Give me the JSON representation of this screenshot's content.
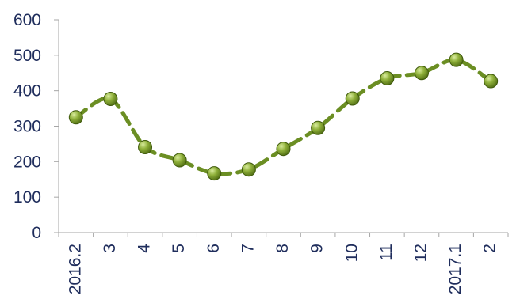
{
  "chart_data": {
    "type": "line",
    "title": "",
    "xlabel": "",
    "ylabel": "",
    "categories": [
      "2016.2",
      "3",
      "4",
      "5",
      "6",
      "7",
      "8",
      "9",
      "10",
      "11",
      "12",
      "2017.1",
      "2"
    ],
    "series": [
      {
        "values": [
          325,
          377,
          241,
          204,
          167,
          178,
          236,
          295,
          378,
          435,
          450,
          487,
          427
        ]
      }
    ],
    "ylim": [
      0,
      600
    ],
    "yticks": [
      "0",
      "100",
      "200",
      "300",
      "400",
      "500",
      "600"
    ],
    "grid": false,
    "legend": "none",
    "colors": {
      "line": "#6b8e23",
      "marker": "#6b8e23",
      "text": "#1f2d5c",
      "axis": "#a6a6a6"
    }
  }
}
